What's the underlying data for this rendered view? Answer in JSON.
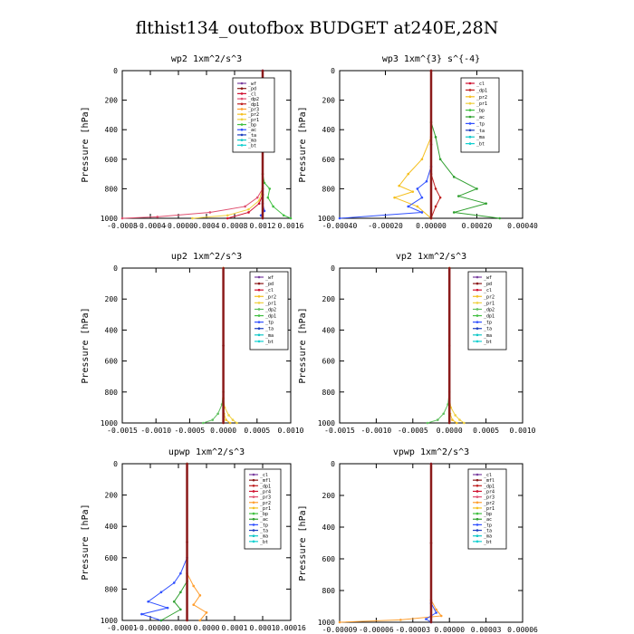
{
  "figure": {
    "title": "flthist134_outofbox  BUDGET at240E,28N"
  },
  "chart_data": [
    {
      "type": "line",
      "title": "wp2  1xm^2/s^3",
      "ylabel": "Pressure [hPa]",
      "xlim": [
        -0.0008,
        0.00016
      ],
      "ylim": [
        1000,
        0
      ],
      "x_ticks": [
        "-0.0008",
        "-0.0004",
        "-0.0000",
        "0.0004",
        "0.0008",
        "0.0012",
        "0.0016"
      ],
      "y_ticks": [
        "0",
        "200",
        "400",
        "600",
        "800",
        "1000"
      ],
      "legend": [
        "_wf",
        "_pd",
        "_cl",
        "_dp2",
        "_dp1",
        "_pr3",
        "_pr2",
        "_pr1",
        "_bp",
        "_ac",
        "_ta",
        "_ma",
        "_bt"
      ],
      "colors": [
        "#7a3fa0",
        "#8b1a1a",
        "#d01030",
        "#e05070",
        "#c02020",
        "#ff9f30",
        "#f5c020",
        "#f0d040",
        "#40c040",
        "#3050ff",
        "#2040c0",
        "#10c8c8",
        "#10d0d0"
      ],
      "series": [
        {
          "name": "_bp",
          "x": [
            0,
            0,
            0,
            1e-05,
            4e-05,
            3e-05,
            6e-05,
            0.00012,
            0.00016
          ],
          "y": [
            0,
            400,
            700,
            760,
            800,
            860,
            920,
            980,
            1000
          ]
        },
        {
          "name": "_pr1",
          "x": [
            0,
            0,
            -2e-05,
            -8e-05,
            -0.0002,
            -0.0004
          ],
          "y": [
            0,
            800,
            880,
            940,
            980,
            1000
          ]
        },
        {
          "name": "_dp2",
          "x": [
            0,
            0,
            -3e-05,
            -0.0001,
            -0.0003,
            -0.0006,
            -0.0008
          ],
          "y": [
            0,
            800,
            860,
            920,
            960,
            990,
            1000
          ]
        },
        {
          "name": "_cl",
          "x": [
            0,
            0,
            -2e-05,
            -8e-05,
            -0.0002
          ],
          "y": [
            0,
            840,
            900,
            960,
            1000
          ]
        },
        {
          "name": "_ac",
          "x": [
            0,
            0,
            1e-05,
            -1e-05,
            0
          ],
          "y": [
            0,
            900,
            950,
            980,
            1000
          ]
        },
        {
          "name": "_bt",
          "x": [
            0,
            0,
            0
          ],
          "y": [
            0,
            500,
            1000
          ]
        }
      ]
    },
    {
      "type": "line",
      "title": "wp3  1xm^{3} s^{-4}",
      "ylabel": "Pressure [hPa]",
      "xlim": [
        -0.0004,
        0.0004
      ],
      "ylim": [
        1000,
        0
      ],
      "x_ticks": [
        "-0.00040",
        "-0.00020",
        "0.00000",
        "0.00020",
        "0.00040"
      ],
      "y_ticks": [
        "0",
        "200",
        "400",
        "600",
        "800",
        "1000"
      ],
      "legend": [
        "_cl",
        "_dp1",
        "_pr2",
        "_pr1",
        "_bp",
        "_ac",
        "_tp",
        "_ta",
        "_ma",
        "_bt"
      ],
      "colors": [
        "#d01030",
        "#c02020",
        "#f5c020",
        "#f0d040",
        "#40c040",
        "#30a030",
        "#3050ff",
        "#2040c0",
        "#10c8c8",
        "#10d0d0"
      ],
      "series": [
        {
          "name": "_ac",
          "x": [
            0,
            0,
            2e-05,
            4e-05,
            0.0001,
            0.0002,
            0.00012,
            0.00024,
            0.0001,
            0.0003
          ],
          "y": [
            0,
            350,
            450,
            600,
            720,
            800,
            850,
            900,
            960,
            1000
          ]
        },
        {
          "name": "_pr2",
          "x": [
            0,
            0,
            -4e-05,
            -0.0001,
            -0.00014,
            -8e-05,
            -0.00016,
            -6e-05,
            0
          ],
          "y": [
            0,
            450,
            600,
            700,
            780,
            820,
            860,
            920,
            1000
          ]
        },
        {
          "name": "_tp",
          "x": [
            0,
            0,
            -2e-05,
            -6e-05,
            -4e-05,
            -0.0001,
            -4e-05,
            -0.0004
          ],
          "y": [
            0,
            650,
            750,
            800,
            860,
            920,
            960,
            1000
          ]
        },
        {
          "name": "_dp1",
          "x": [
            0,
            0,
            2e-05,
            4e-05,
            2e-05,
            0
          ],
          "y": [
            0,
            700,
            800,
            860,
            920,
            1000
          ]
        },
        {
          "name": "_bt",
          "x": [
            0,
            0,
            0
          ],
          "y": [
            0,
            500,
            1000
          ]
        }
      ]
    },
    {
      "type": "line",
      "title": "up2  1xm^2/s^3",
      "ylabel": "Pressure [hPa]",
      "xlim": [
        -0.0015,
        0.001
      ],
      "ylim": [
        1000,
        0
      ],
      "x_ticks": [
        "-0.0015",
        "-0.0010",
        "-0.0005",
        "0.0000",
        "0.0005",
        "0.0010"
      ],
      "y_ticks": [
        "0",
        "200",
        "400",
        "600",
        "800",
        "1000"
      ],
      "legend": [
        "_wf",
        "_pd",
        "_cl",
        "_pr2",
        "_pr1",
        "_dp2",
        "_dp1",
        "_tp",
        "_ta",
        "_ma",
        "_bt"
      ],
      "colors": [
        "#7a3fa0",
        "#8b1a1a",
        "#d01030",
        "#f5c020",
        "#f0d040",
        "#60c060",
        "#40c040",
        "#3050ff",
        "#2040c0",
        "#10c8c8",
        "#10d0d0"
      ],
      "series": [
        {
          "name": "_dp2",
          "x": [
            0,
            0,
            -2e-05,
            -8e-05,
            -0.00016,
            -0.0003
          ],
          "y": [
            0,
            800,
            880,
            940,
            980,
            1000
          ]
        },
        {
          "name": "_pr1",
          "x": [
            0,
            0,
            2e-05,
            8e-05,
            0.00014,
            0.0002
          ],
          "y": [
            0,
            840,
            900,
            950,
            980,
            1000
          ]
        },
        {
          "name": "_pr2",
          "x": [
            0,
            0,
            1e-05,
            4e-05,
            0.0001
          ],
          "y": [
            0,
            880,
            940,
            980,
            1000
          ]
        },
        {
          "name": "_bt",
          "x": [
            0,
            0,
            0
          ],
          "y": [
            0,
            500,
            1000
          ]
        }
      ]
    },
    {
      "type": "line",
      "title": "vp2  1xm^2/s^3",
      "ylabel": "Pressure [hPa]",
      "xlim": [
        -0.0015,
        0.001
      ],
      "ylim": [
        1000,
        0
      ],
      "x_ticks": [
        "-0.0015",
        "-0.0010",
        "-0.0005",
        "0.0000",
        "0.0005",
        "0.0010"
      ],
      "y_ticks": [
        "0",
        "200",
        "400",
        "600",
        "800",
        "1000"
      ],
      "legend": [
        "_wf",
        "_pd",
        "_cl",
        "_pr2",
        "_pr1",
        "_dp2",
        "_dp1",
        "_tp",
        "_ta",
        "_ma",
        "_bt"
      ],
      "colors": [
        "#7a3fa0",
        "#8b1a1a",
        "#d01030",
        "#f5c020",
        "#f0d040",
        "#60c060",
        "#40c040",
        "#3050ff",
        "#2040c0",
        "#10c8c8",
        "#10d0d0"
      ],
      "series": [
        {
          "name": "_dp2",
          "x": [
            0,
            0,
            -2e-05,
            -8e-05,
            -0.00016,
            -0.0003
          ],
          "y": [
            0,
            800,
            880,
            940,
            980,
            1000
          ]
        },
        {
          "name": "_pr1",
          "x": [
            0,
            0,
            2e-05,
            8e-05,
            0.00014,
            0.0002
          ],
          "y": [
            0,
            840,
            900,
            950,
            980,
            1000
          ]
        },
        {
          "name": "_pr2",
          "x": [
            0,
            0,
            1e-05,
            4e-05,
            0.0001
          ],
          "y": [
            0,
            880,
            940,
            980,
            1000
          ]
        },
        {
          "name": "_bt",
          "x": [
            0,
            0,
            0
          ],
          "y": [
            0,
            500,
            1000
          ]
        }
      ]
    },
    {
      "type": "line",
      "title": "upwp  1xm^2/s^3",
      "ylabel": "Pressure [hPa]",
      "xlim": [
        -0.0001,
        0.00016
      ],
      "ylim": [
        1000,
        0
      ],
      "x_ticks": [
        "-0.0001",
        "-0.0000",
        "0.0000",
        "0.0000",
        "0.0001",
        "0.0001",
        "0.00016"
      ],
      "y_ticks": [
        "0",
        "200",
        "400",
        "600",
        "800",
        "1000"
      ],
      "legend": [
        "_cl",
        "_mfl",
        "_dp1",
        "_pr4",
        "_pr3",
        "_pr2",
        "_pr1",
        "_bp",
        "_ac",
        "_tp",
        "_ta",
        "_ma",
        "_bt"
      ],
      "colors": [
        "#7a3fa0",
        "#8b1a1a",
        "#c02020",
        "#d01030",
        "#e05070",
        "#ff9f30",
        "#f5c020",
        "#40c040",
        "#30a030",
        "#3050ff",
        "#2040c0",
        "#10c8c8",
        "#10d0d0"
      ],
      "series": [
        {
          "name": "_tp",
          "x": [
            0,
            0,
            -1e-05,
            -2e-05,
            -4e-05,
            -6e-05,
            -3e-05,
            -7e-05,
            -4e-05
          ],
          "y": [
            0,
            600,
            700,
            760,
            820,
            880,
            920,
            960,
            1000
          ]
        },
        {
          "name": "_pr2",
          "x": [
            0,
            0,
            1e-05,
            2e-05,
            1e-05,
            3e-05,
            2e-05
          ],
          "y": [
            0,
            700,
            780,
            840,
            900,
            950,
            1000
          ]
        },
        {
          "name": "_ac",
          "x": [
            0,
            0,
            -1e-05,
            -2e-05,
            -1e-05,
            -4e-05
          ],
          "y": [
            0,
            750,
            820,
            880,
            930,
            1000
          ]
        },
        {
          "name": "_bt",
          "x": [
            0,
            0,
            0
          ],
          "y": [
            0,
            500,
            1000
          ]
        }
      ]
    },
    {
      "type": "line",
      "title": "vpwp  1xm^2/s^3",
      "ylabel": "Pressure [hPa]",
      "xlim": [
        -9e-05,
        9e-05
      ],
      "ylim": [
        1000,
        0
      ],
      "x_ticks": [
        "-0.00009",
        "-0.00006",
        "-0.00003",
        "0.00000",
        "0.00003",
        "0.00006"
      ],
      "y_ticks": [
        "0",
        "200",
        "400",
        "600",
        "800",
        "1000"
      ],
      "legend": [
        "_cl",
        "_mfl",
        "_dp1",
        "_pr4",
        "_pr3",
        "_pr2",
        "_pr1",
        "_bp",
        "_ac",
        "_tp",
        "_ta",
        "_ma",
        "_bt"
      ],
      "colors": [
        "#7a3fa0",
        "#8b1a1a",
        "#c02020",
        "#d01030",
        "#e05070",
        "#ff9f30",
        "#f5c020",
        "#40c040",
        "#30a030",
        "#3050ff",
        "#2040c0",
        "#10c8c8",
        "#10d0d0"
      ],
      "series": [
        {
          "name": "_pr2",
          "x": [
            0,
            0,
            5e-06,
            1e-05,
            -3e-05,
            -9e-05
          ],
          "y": [
            0,
            860,
            920,
            960,
            985,
            1000
          ]
        },
        {
          "name": "_tp",
          "x": [
            0,
            0,
            5e-06,
            -5e-06,
            0
          ],
          "y": [
            0,
            880,
            940,
            980,
            1000
          ]
        },
        {
          "name": "_bt",
          "x": [
            0,
            0,
            0
          ],
          "y": [
            0,
            500,
            1000
          ]
        }
      ]
    }
  ]
}
